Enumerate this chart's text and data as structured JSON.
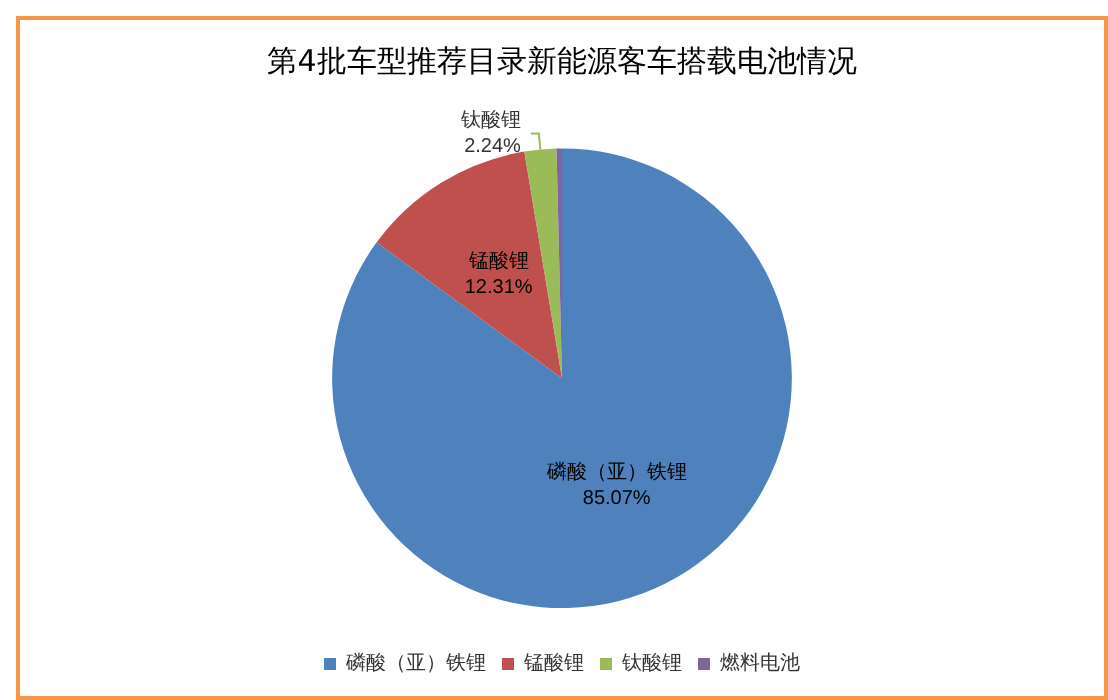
{
  "chart_data": {
    "type": "pie",
    "title": "第4批车型推荐目录新能源客车搭载电池情况",
    "categories": [
      "磷酸（亚）铁锂",
      "锰酸锂",
      "钛酸锂",
      "燃料电池"
    ],
    "values": [
      85.07,
      12.31,
      2.24,
      0.38
    ],
    "value_labels": [
      "85.07%",
      "12.31%",
      "2.24%",
      null
    ],
    "colors": [
      "#4f81bd",
      "#c0504d",
      "#9bbb59",
      "#8064a2"
    ],
    "legend": "bottom"
  }
}
